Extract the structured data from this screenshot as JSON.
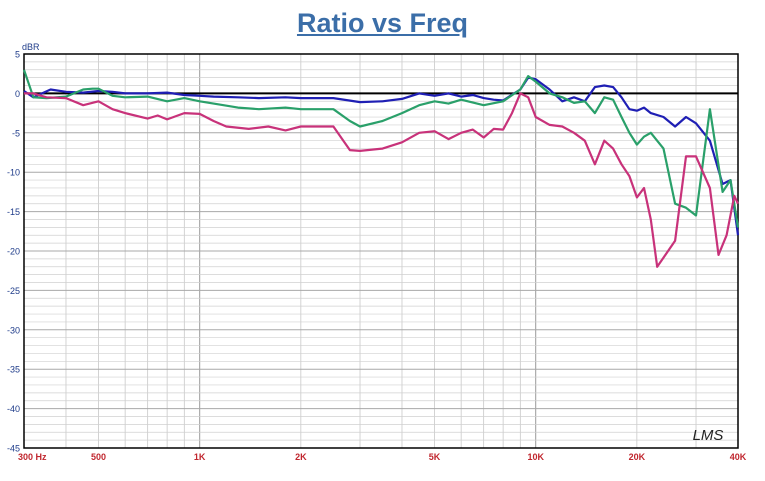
{
  "chart_data": {
    "type": "line",
    "title": "Ratio vs Freq",
    "ylabel": "dBR",
    "xlabel": "",
    "x_scale": "log",
    "xlim": [
      300,
      40000
    ],
    "ylim": [
      -45,
      5
    ],
    "grid": true,
    "y_ticks": [
      5,
      0,
      -5,
      -10,
      -15,
      -20,
      -25,
      -30,
      -35,
      -40,
      -45
    ],
    "y_tick_labels": [
      "5",
      "0",
      "-5",
      "-10",
      "-15",
      "-20",
      "-25",
      "-30",
      "-35",
      "-40",
      "-45"
    ],
    "x_ticks": [
      300,
      500,
      1000,
      2000,
      5000,
      10000,
      20000,
      40000
    ],
    "x_tick_labels": [
      "300  Hz",
      "500",
      "1K",
      "2K",
      "5K",
      "10K",
      "20K",
      "40K"
    ],
    "watermark": "LMS",
    "series": [
      {
        "color": "#1f1fb4",
        "points": [
          [
            300,
            0.3
          ],
          [
            320,
            -0.5
          ],
          [
            360,
            0.5
          ],
          [
            400,
            0.2
          ],
          [
            450,
            0.1
          ],
          [
            500,
            0.3
          ],
          [
            550,
            0.2
          ],
          [
            600,
            0
          ],
          [
            700,
            0
          ],
          [
            800,
            0.1
          ],
          [
            900,
            -0.2
          ],
          [
            1000,
            -0.3
          ],
          [
            1100,
            -0.4
          ],
          [
            1300,
            -0.5
          ],
          [
            1500,
            -0.6
          ],
          [
            1800,
            -0.5
          ],
          [
            2000,
            -0.6
          ],
          [
            2500,
            -0.6
          ],
          [
            3000,
            -1.1
          ],
          [
            3500,
            -1
          ],
          [
            4000,
            -0.7
          ],
          [
            4500,
            0
          ],
          [
            5000,
            -0.3
          ],
          [
            5500,
            0
          ],
          [
            6000,
            -0.4
          ],
          [
            6500,
            -0.2
          ],
          [
            7000,
            -0.6
          ],
          [
            7500,
            -0.8
          ],
          [
            8000,
            -0.9
          ],
          [
            9000,
            0.5
          ],
          [
            9500,
            2
          ],
          [
            10000,
            1.8
          ],
          [
            11000,
            0.5
          ],
          [
            12000,
            -1
          ],
          [
            13000,
            -0.5
          ],
          [
            14000,
            -1
          ],
          [
            15000,
            0.8
          ],
          [
            16000,
            1
          ],
          [
            17000,
            0.8
          ],
          [
            18000,
            -0.5
          ],
          [
            19000,
            -2
          ],
          [
            20000,
            -2.2
          ],
          [
            21000,
            -1.8
          ],
          [
            22000,
            -2.5
          ],
          [
            24000,
            -3
          ],
          [
            26000,
            -4.2
          ],
          [
            28000,
            -3
          ],
          [
            30000,
            -3.8
          ],
          [
            33000,
            -6
          ],
          [
            36000,
            -11.5
          ],
          [
            38000,
            -11
          ],
          [
            40000,
            -18
          ]
        ]
      },
      {
        "color": "#2aa06a",
        "points": [
          [
            300,
            3
          ],
          [
            320,
            -0.5
          ],
          [
            350,
            -0.6
          ],
          [
            400,
            -0.4
          ],
          [
            450,
            0.5
          ],
          [
            480,
            0.6
          ],
          [
            500,
            0.6
          ],
          [
            550,
            -0.3
          ],
          [
            600,
            -0.5
          ],
          [
            700,
            -0.4
          ],
          [
            800,
            -1
          ],
          [
            900,
            -0.6
          ],
          [
            1000,
            -1
          ],
          [
            1100,
            -1.3
          ],
          [
            1300,
            -1.8
          ],
          [
            1500,
            -2
          ],
          [
            1800,
            -1.8
          ],
          [
            2000,
            -2
          ],
          [
            2500,
            -2
          ],
          [
            2800,
            -3.5
          ],
          [
            3000,
            -4.2
          ],
          [
            3500,
            -3.5
          ],
          [
            4000,
            -2.5
          ],
          [
            4500,
            -1.5
          ],
          [
            5000,
            -1
          ],
          [
            5500,
            -1.3
          ],
          [
            6000,
            -0.8
          ],
          [
            7000,
            -1.5
          ],
          [
            8000,
            -1
          ],
          [
            9000,
            0.5
          ],
          [
            9500,
            2.2
          ],
          [
            10000,
            1.5
          ],
          [
            11000,
            0
          ],
          [
            12000,
            -0.5
          ],
          [
            13000,
            -1.2
          ],
          [
            14000,
            -1
          ],
          [
            15000,
            -2.5
          ],
          [
            16000,
            -0.5
          ],
          [
            17000,
            -0.8
          ],
          [
            18000,
            -3
          ],
          [
            19000,
            -5
          ],
          [
            20000,
            -6.5
          ],
          [
            21000,
            -5.5
          ],
          [
            22000,
            -5
          ],
          [
            24000,
            -7
          ],
          [
            26000,
            -14
          ],
          [
            28000,
            -14.5
          ],
          [
            30000,
            -15.5
          ],
          [
            33000,
            -2
          ],
          [
            36000,
            -12.5
          ],
          [
            38000,
            -11
          ],
          [
            40000,
            -17
          ]
        ]
      },
      {
        "color": "#c8327a",
        "points": [
          [
            300,
            0
          ],
          [
            320,
            0
          ],
          [
            350,
            -0.5
          ],
          [
            400,
            -0.6
          ],
          [
            450,
            -1.5
          ],
          [
            500,
            -1
          ],
          [
            550,
            -2
          ],
          [
            600,
            -2.5
          ],
          [
            700,
            -3.2
          ],
          [
            750,
            -2.8
          ],
          [
            800,
            -3.3
          ],
          [
            900,
            -2.5
          ],
          [
            1000,
            -2.6
          ],
          [
            1100,
            -3.5
          ],
          [
            1200,
            -4.2
          ],
          [
            1400,
            -4.5
          ],
          [
            1600,
            -4.2
          ],
          [
            1800,
            -4.7
          ],
          [
            2000,
            -4.2
          ],
          [
            2500,
            -4.2
          ],
          [
            2800,
            -7.2
          ],
          [
            3000,
            -7.3
          ],
          [
            3500,
            -7
          ],
          [
            4000,
            -6.2
          ],
          [
            4500,
            -5
          ],
          [
            5000,
            -4.8
          ],
          [
            5500,
            -5.8
          ],
          [
            6000,
            -5
          ],
          [
            6500,
            -4.6
          ],
          [
            7000,
            -5.6
          ],
          [
            7500,
            -4.5
          ],
          [
            8000,
            -4.6
          ],
          [
            8500,
            -2.5
          ],
          [
            9000,
            0
          ],
          [
            9500,
            -0.5
          ],
          [
            10000,
            -3
          ],
          [
            11000,
            -4
          ],
          [
            12000,
            -4.2
          ],
          [
            13000,
            -5
          ],
          [
            14000,
            -6
          ],
          [
            15000,
            -9
          ],
          [
            16000,
            -6
          ],
          [
            17000,
            -7
          ],
          [
            18000,
            -9
          ],
          [
            19000,
            -10.5
          ],
          [
            20000,
            -13.2
          ],
          [
            21000,
            -12
          ],
          [
            22000,
            -16
          ],
          [
            23000,
            -22
          ],
          [
            26000,
            -18.7
          ],
          [
            28000,
            -8
          ],
          [
            30000,
            -8
          ],
          [
            33000,
            -12
          ],
          [
            35000,
            -20.5
          ],
          [
            37000,
            -18
          ],
          [
            39000,
            -13
          ],
          [
            40000,
            -14
          ]
        ]
      }
    ]
  }
}
